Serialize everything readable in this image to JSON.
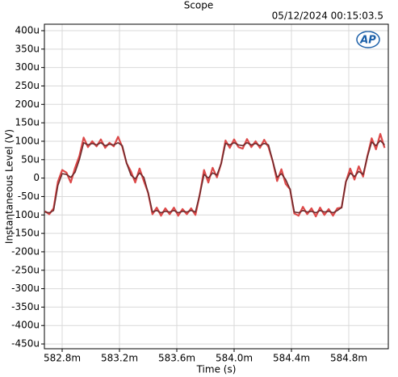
{
  "chart_data": {
    "type": "line",
    "title": "Scope",
    "timestamp": "05/12/2024 00:15:03.5",
    "logo": "AP",
    "xlabel": "Time (s)",
    "ylabel": "Instantaneous Level (V)",
    "grid": true,
    "xlim": [
      0.582676,
      0.585076
    ],
    "ylim": [
      -0.000463,
      0.0004175
    ],
    "xticks": [
      {
        "value": 0.5828,
        "label": "582.8m"
      },
      {
        "value": 0.5832,
        "label": "583.2m"
      },
      {
        "value": 0.5836,
        "label": "583.6m"
      },
      {
        "value": 0.584,
        "label": "584.0m"
      },
      {
        "value": 0.5844,
        "label": "584.4m"
      },
      {
        "value": 0.5848,
        "label": "584.8m"
      }
    ],
    "yticks": [
      {
        "value": 0.0004,
        "label": "400u"
      },
      {
        "value": 0.00035,
        "label": "350u"
      },
      {
        "value": 0.0003,
        "label": "300u"
      },
      {
        "value": 0.00025,
        "label": "250u"
      },
      {
        "value": 0.0002,
        "label": "200u"
      },
      {
        "value": 0.00015,
        "label": "150u"
      },
      {
        "value": 0.0001,
        "label": "100u"
      },
      {
        "value": 5e-05,
        "label": "50u"
      },
      0,
      {
        "value": -5e-05,
        "label": "-50u"
      },
      {
        "value": -0.0001,
        "label": "-100u"
      },
      {
        "value": -0.00015,
        "label": "-150u"
      },
      {
        "value": -0.0002,
        "label": "-200u"
      },
      {
        "value": -0.00025,
        "label": "-250u"
      },
      {
        "value": -0.0003,
        "label": "-300u"
      },
      {
        "value": -0.00035,
        "label": "-350u"
      },
      {
        "value": -0.0004,
        "label": "-400u"
      },
      {
        "value": -0.00045,
        "label": "-450u"
      }
    ],
    "x": [
      0.58268,
      0.58271,
      0.58274,
      0.58277,
      0.5828,
      0.58283,
      0.58286,
      0.58289,
      0.58292,
      0.58295,
      0.58298,
      0.58301,
      0.58304,
      0.58307,
      0.5831,
      0.58313,
      0.58316,
      0.58319,
      0.58322,
      0.58325,
      0.58328,
      0.58331,
      0.58334,
      0.58337,
      0.5834,
      0.58343,
      0.58346,
      0.58349,
      0.58352,
      0.58355,
      0.58358,
      0.58361,
      0.58364,
      0.58367,
      0.5837,
      0.58373,
      0.58376,
      0.58379,
      0.58382,
      0.58385,
      0.58388,
      0.58391,
      0.58394,
      0.58397,
      0.584,
      0.58403,
      0.58406,
      0.58409,
      0.58412,
      0.58415,
      0.58418,
      0.58421,
      0.58424,
      0.58427,
      0.5843,
      0.58433,
      0.58436,
      0.58439,
      0.58442,
      0.58445,
      0.58448,
      0.58451,
      0.58454,
      0.58457,
      0.5846,
      0.58463,
      0.58466,
      0.58469,
      0.58472,
      0.58475,
      0.58478,
      0.58481,
      0.58484,
      0.58487,
      0.5849,
      0.58493,
      0.58496,
      0.58499,
      0.58502,
      0.58505
    ],
    "series": [
      {
        "color": "#dc4848",
        "values": [
          -9e-05,
          -9.8e-05,
          -8.2e-05,
          -1e-05,
          2.2e-05,
          1.5e-05,
          -1.2e-05,
          2.8e-05,
          6e-05,
          0.00011,
          8.4e-05,
          0.0001,
          8.6e-05,
          0.000105,
          8.2e-05,
          9.6e-05,
          8.6e-05,
          0.000112,
          8.4e-05,
          4e-05,
          1.8e-05,
          -1.2e-05,
          2.6e-05,
          -8e-06,
          -4e-05,
          -9.8e-05,
          -8e-05,
          -0.000102,
          -8.2e-05,
          -9.8e-05,
          -8e-05,
          -0.000102,
          -8.4e-05,
          -9.8e-05,
          -8.2e-05,
          -0.0001,
          -4.5e-05,
          2.2e-05,
          -1.2e-05,
          2.8e-05,
          2e-06,
          4e-05,
          0.000102,
          8.2e-05,
          0.000105,
          8.4e-05,
          8e-05,
          0.000106,
          8.4e-05,
          0.0001,
          8.2e-05,
          0.000104,
          8.4e-05,
          4.5e-05,
          -8e-06,
          2.4e-05,
          -1.6e-05,
          -3e-05,
          -9.6e-05,
          -0.000102,
          -7.8e-05,
          -9.8e-05,
          -8.2e-05,
          -0.000104,
          -8e-05,
          -0.0001,
          -8.4e-05,
          -0.000102,
          -8.2e-05,
          -8e-05,
          -1e-05,
          2.6e-05,
          -4e-06,
          3.2e-05,
          4e-06,
          6e-05,
          0.000108,
          7.8e-05,
          0.00012,
          8.2e-05
        ]
      },
      {
        "color": "#6e2a2c",
        "values": [
          -9.2e-05,
          -9.4e-05,
          -8.8e-05,
          -2e-05,
          1.2e-05,
          1e-05,
          2e-06,
          1.6e-05,
          5e-05,
          9.6e-05,
          9e-05,
          9.4e-05,
          9e-05,
          9.6e-05,
          8.8e-05,
          9.2e-05,
          9e-05,
          9.6e-05,
          8.8e-05,
          4e-05,
          8e-06,
          -2e-06,
          1.4e-05,
          2e-06,
          -4e-05,
          -9.2e-05,
          -8.8e-05,
          -9.4e-05,
          -9e-05,
          -9.2e-05,
          -8.8e-05,
          -9.4e-05,
          -9e-05,
          -9.2e-05,
          -8.8e-05,
          -9.2e-05,
          -4.5e-05,
          1e-05,
          0,
          1.4e-05,
          8e-06,
          4e-05,
          9.4e-05,
          9e-05,
          9.6e-05,
          9e-05,
          8.8e-05,
          9.6e-05,
          9e-05,
          9.4e-05,
          8.8e-05,
          9.4e-05,
          9e-05,
          4.5e-05,
          2e-06,
          1.2e-05,
          -4e-06,
          -3e-05,
          -9.2e-05,
          -9.4e-05,
          -8.8e-05,
          -9.2e-05,
          -9e-05,
          -9.4e-05,
          -8.8e-05,
          -9.2e-05,
          -9e-05,
          -9.4e-05,
          -8.8e-05,
          -8e-05,
          -1e-05,
          1.4e-05,
          4e-06,
          1.8e-05,
          1e-05,
          5.8e-05,
          9.8e-05,
          8.8e-05,
          0.000102,
          9e-05
        ]
      }
    ]
  }
}
